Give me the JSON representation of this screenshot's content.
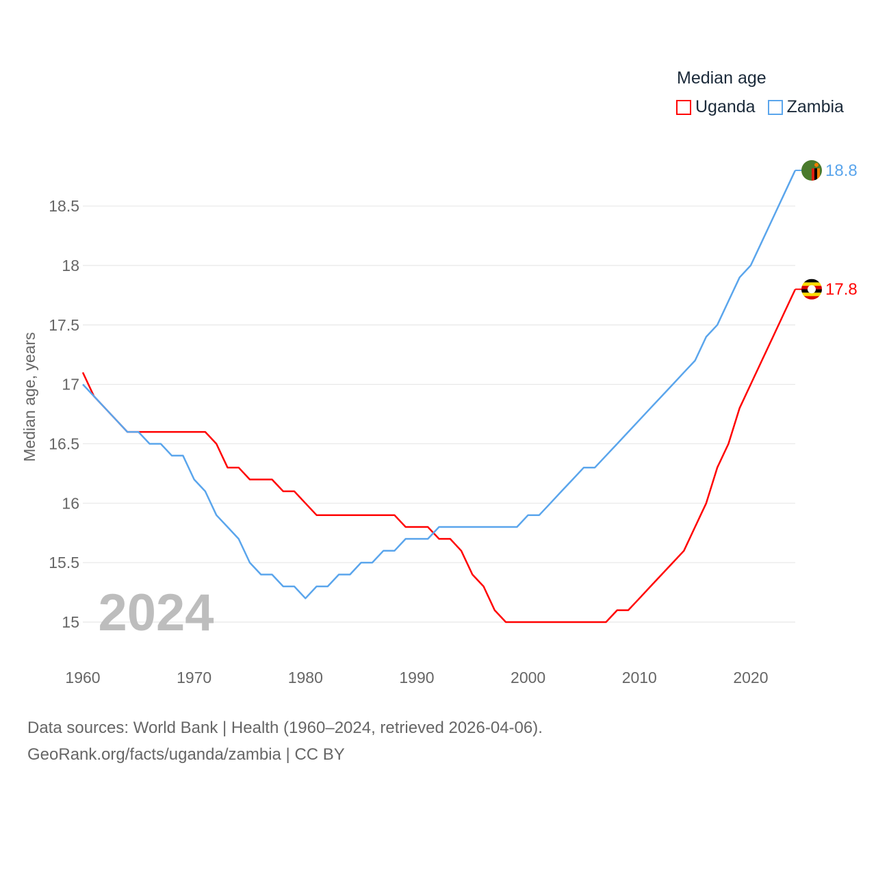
{
  "chart_data": {
    "type": "line",
    "title": "Median age",
    "xlabel": "",
    "ylabel": "Median age, years",
    "xlim": [
      1960,
      2024
    ],
    "ylim": [
      14.7,
      19.0
    ],
    "x_ticks": [
      1960,
      1970,
      1980,
      1990,
      2000,
      2010,
      2020
    ],
    "y_ticks": [
      15,
      15.5,
      16,
      16.5,
      17,
      17.5,
      18,
      18.5
    ],
    "y_tick_labels": [
      "15",
      "15.5",
      "16",
      "16.5",
      "17",
      "17.5",
      "18",
      "18.5"
    ],
    "x_tick_labels": [
      "1960",
      "1970",
      "1980",
      "1990",
      "2000",
      "2010",
      "2020"
    ],
    "grid": true,
    "legend_position": "top-right",
    "year_label": "2024",
    "x": [
      1960,
      1961,
      1962,
      1963,
      1964,
      1965,
      1966,
      1967,
      1968,
      1969,
      1970,
      1971,
      1972,
      1973,
      1974,
      1975,
      1976,
      1977,
      1978,
      1979,
      1980,
      1981,
      1982,
      1983,
      1984,
      1985,
      1986,
      1987,
      1988,
      1989,
      1990,
      1991,
      1992,
      1993,
      1994,
      1995,
      1996,
      1997,
      1998,
      1999,
      2000,
      2001,
      2002,
      2003,
      2004,
      2005,
      2006,
      2007,
      2008,
      2009,
      2010,
      2011,
      2012,
      2013,
      2014,
      2015,
      2016,
      2017,
      2018,
      2019,
      2020,
      2021,
      2022,
      2023,
      2024
    ],
    "series": [
      {
        "name": "Uganda",
        "color": "#ff0000",
        "end_label": "17.8",
        "values": [
          17.1,
          16.9,
          16.8,
          16.7,
          16.6,
          16.6,
          16.6,
          16.6,
          16.6,
          16.6,
          16.6,
          16.6,
          16.5,
          16.3,
          16.3,
          16.2,
          16.2,
          16.2,
          16.1,
          16.1,
          16.0,
          15.9,
          15.9,
          15.9,
          15.9,
          15.9,
          15.9,
          15.9,
          15.9,
          15.8,
          15.8,
          15.8,
          15.7,
          15.7,
          15.6,
          15.4,
          15.3,
          15.1,
          15.0,
          15.0,
          15.0,
          15.0,
          15.0,
          15.0,
          15.0,
          15.0,
          15.0,
          15.0,
          15.1,
          15.1,
          15.2,
          15.3,
          15.4,
          15.5,
          15.6,
          15.8,
          16.0,
          16.3,
          16.5,
          16.8,
          17.0,
          17.2,
          17.4,
          17.6,
          17.8
        ]
      },
      {
        "name": "Zambia",
        "color": "#5aa5ec",
        "end_label": "18.8",
        "values": [
          17.0,
          16.9,
          16.8,
          16.7,
          16.6,
          16.6,
          16.5,
          16.5,
          16.4,
          16.4,
          16.2,
          16.1,
          15.9,
          15.8,
          15.7,
          15.5,
          15.4,
          15.4,
          15.3,
          15.3,
          15.2,
          15.3,
          15.3,
          15.4,
          15.4,
          15.5,
          15.5,
          15.6,
          15.6,
          15.7,
          15.7,
          15.7,
          15.8,
          15.8,
          15.8,
          15.8,
          15.8,
          15.8,
          15.8,
          15.8,
          15.9,
          15.9,
          16.0,
          16.1,
          16.2,
          16.3,
          16.3,
          16.4,
          16.5,
          16.6,
          16.7,
          16.8,
          16.9,
          17.0,
          17.1,
          17.2,
          17.4,
          17.5,
          17.7,
          17.9,
          18.0,
          18.2,
          18.4,
          18.6,
          18.8
        ]
      }
    ]
  },
  "footer": {
    "line1": "Data sources: World Bank | Health (1960–2024, retrieved 2026-04-06).",
    "line2": "GeoRank.org/facts/uganda/zambia | CC BY"
  }
}
